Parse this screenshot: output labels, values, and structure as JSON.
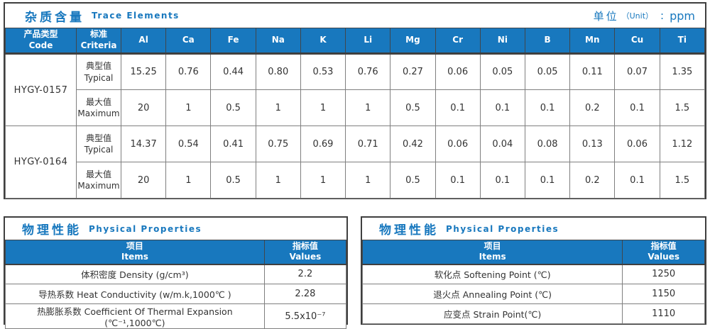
{
  "colors": {
    "header_blue": "#1878be",
    "title_blue": "#1878be",
    "border_dark": "#3f3f3f",
    "border_gray": "#7f7f7f",
    "text": "#333333"
  },
  "trace": {
    "title_zh": "杂质含量",
    "title_en": "Trace Elements",
    "unit": {
      "zh": "单位",
      "en": "（Unit）",
      "colon": ":",
      "value": "ppm"
    },
    "col_code": {
      "zh": "产品类型",
      "en": "Code"
    },
    "col_criteria": {
      "zh": "标准",
      "en": "Criteria"
    },
    "columns": [
      "Al",
      "Ca",
      "Fe",
      "Na",
      "K",
      "Li",
      "Mg",
      "Cr",
      "Ni",
      "B",
      "Mn",
      "Cu",
      "Ti"
    ],
    "groups": [
      {
        "code": "HYGY-0157",
        "rows": [
          {
            "criteria_zh": "典型值",
            "criteria_en": "Typical",
            "values": [
              "15.25",
              "0.76",
              "0.44",
              "0.80",
              "0.53",
              "0.76",
              "0.27",
              "0.06",
              "0.05",
              "0.05",
              "0.11",
              "0.07",
              "1.35"
            ]
          },
          {
            "criteria_zh": "最大值",
            "criteria_en": "Maximum",
            "values": [
              "20",
              "1",
              "0.5",
              "1",
              "1",
              "1",
              "0.5",
              "0.1",
              "0.1",
              "0.1",
              "0.2",
              "0.1",
              "1.5"
            ]
          }
        ]
      },
      {
        "code": "HYGY-0164",
        "rows": [
          {
            "criteria_zh": "典型值",
            "criteria_en": "Typical",
            "values": [
              "14.37",
              "0.54",
              "0.41",
              "0.75",
              "0.69",
              "0.71",
              "0.42",
              "0.06",
              "0.04",
              "0.08",
              "0.13",
              "0.06",
              "1.12"
            ]
          },
          {
            "criteria_zh": "最大值",
            "criteria_en": "Maximum",
            "values": [
              "20",
              "1",
              "0.5",
              "1",
              "1",
              "1",
              "0.5",
              "0.1",
              "0.1",
              "0.1",
              "0.2",
              "0.1",
              "1.5"
            ]
          }
        ]
      }
    ]
  },
  "physical_left": {
    "title_zh": "物理性能",
    "title_en": "Physical Properties",
    "col_items": {
      "zh": "项目",
      "en": "Items"
    },
    "col_values": {
      "zh": "指标值",
      "en": "Values"
    },
    "rows": [
      {
        "item": "体积密度 Density (g/cm³)",
        "value": "2.2"
      },
      {
        "item": "导热系数 Heat Conductivity (w/m.k,1000℃ )",
        "value": "2.28"
      },
      {
        "item": "热膨胀系数 Coefficient Of Thermal Expansion (℃⁻¹,1000℃)",
        "value": "5.5x10⁻⁷"
      }
    ]
  },
  "physical_right": {
    "title_zh": "物理性能",
    "title_en": "Physical Properties",
    "col_items": {
      "zh": "项目",
      "en": "Items"
    },
    "col_values": {
      "zh": "指标值",
      "en": "Values"
    },
    "rows": [
      {
        "item": "软化点 Softening Point (℃)",
        "value": "1250"
      },
      {
        "item": "退火点 Annealing Point (℃)",
        "value": "1150"
      },
      {
        "item": "应变点 Strain Point(℃)",
        "value": "1110"
      }
    ]
  }
}
